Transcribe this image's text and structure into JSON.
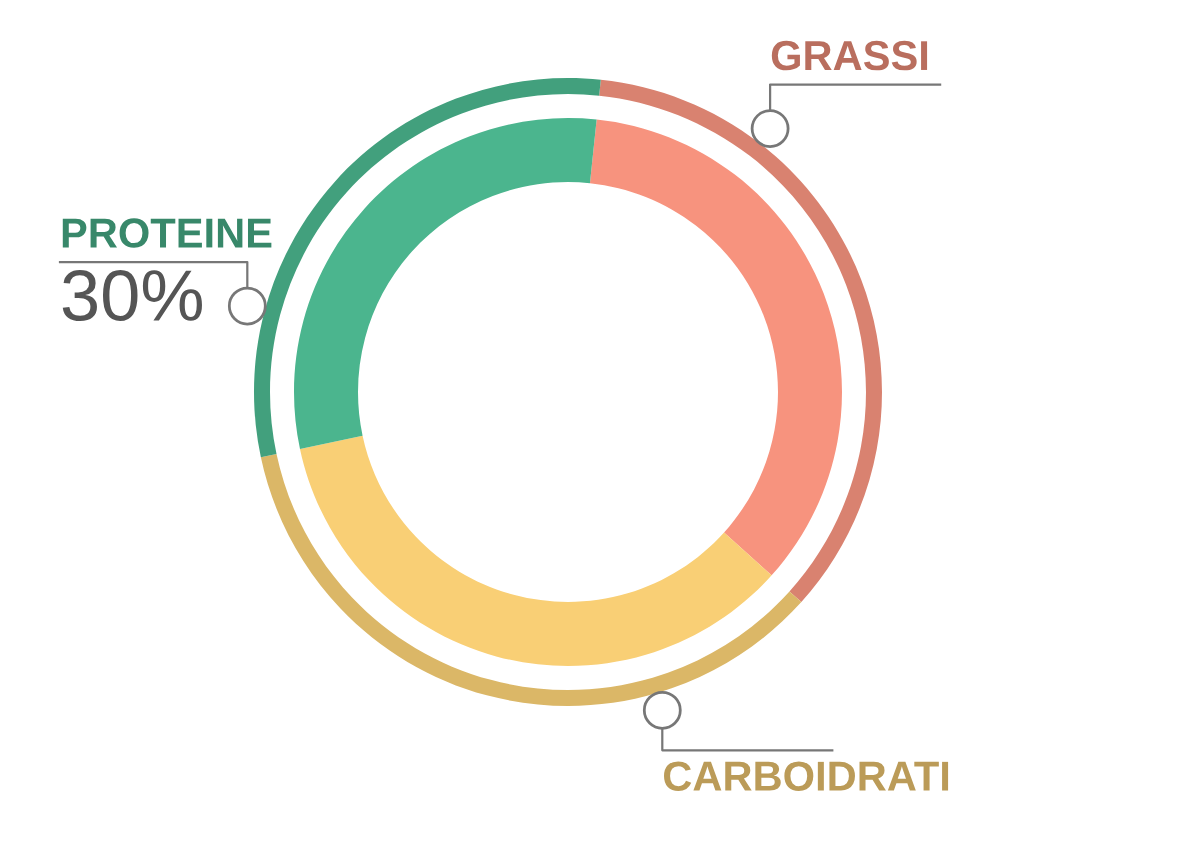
{
  "chart_data": {
    "type": "donut",
    "categories": [
      "GRASSI",
      "CARBOIDRATI",
      "PROTEINE"
    ],
    "series": [
      {
        "values": [
          35,
          35,
          30
        ],
        "colors": [
          "#d98270",
          "#dbb767",
          "#42a07d"
        ]
      },
      {
        "values": [
          35,
          35,
          30
        ],
        "colors": [
          "#f7937e",
          "#f9cf75",
          "#4bb58e"
        ]
      }
    ],
    "value_labels": [
      null,
      null,
      "30%"
    ],
    "legend": false
  }
}
